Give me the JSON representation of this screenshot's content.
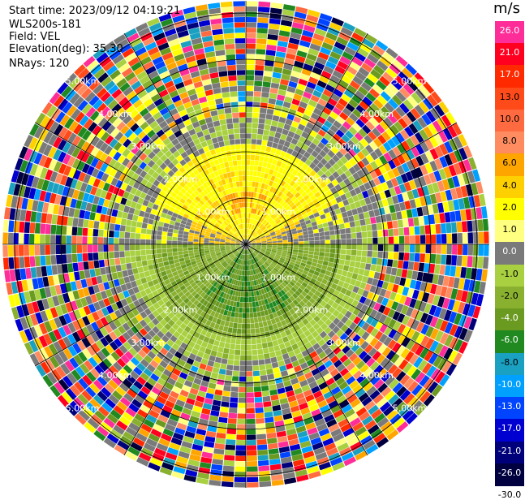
{
  "header": {
    "start_time": "Start time: 2023/09/12 04:19:21",
    "instrument": "WLS200s-181",
    "field": "Field: VEL",
    "elevation": "Elevation(deg): 35.30",
    "nrays": "NRays: 120"
  },
  "chart_data": {
    "type": "heatmap",
    "projection": "polar PPI",
    "n_rays": 120,
    "range_rings": [
      "1.00km",
      "2.00km",
      "3.00km",
      "4.00km",
      "5.00km"
    ],
    "colorbar": {
      "unit": "m/s",
      "ticks": [
        "26.0",
        "21.0",
        "17.0",
        "13.0",
        "10.0",
        "8.0",
        "6.0",
        "4.0",
        "2.0",
        "1.0",
        "0.0",
        "-1.0",
        "-2.0",
        "-4.0",
        "-6.0",
        "-8.0",
        "-10.0",
        "-13.0",
        "-17.0",
        "-21.0",
        "-26.0",
        "-30.0"
      ],
      "colors": [
        "#ff2d98",
        "#ff0020",
        "#ff2a00",
        "#ff4a1a",
        "#ff6a40",
        "#ff8c60",
        "#ffa500",
        "#ffd000",
        "#ffff00",
        "#ffff80",
        "#7a7a7a",
        "#a8d040",
        "#8ab030",
        "#6a9a20",
        "#208a20",
        "#1aa0c0",
        "#00a0ff",
        "#0044ff",
        "#0000d0",
        "#00007a",
        "#000040"
      ]
    }
  }
}
